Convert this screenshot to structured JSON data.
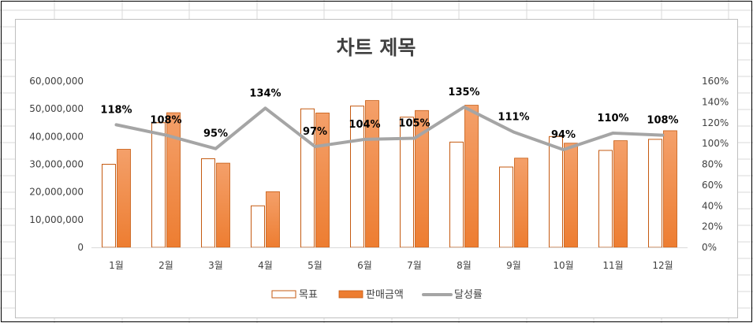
{
  "chart_data": {
    "type": "bar",
    "title": "차트 제목",
    "categories": [
      "1월",
      "2월",
      "3월",
      "4월",
      "5월",
      "6월",
      "7월",
      "8월",
      "9월",
      "10월",
      "11월",
      "12월"
    ],
    "series": [
      {
        "name": "목표",
        "kind": "bar",
        "style": "outline",
        "values": [
          30000000,
          45000000,
          32000000,
          15000000,
          50000000,
          51000000,
          47000000,
          38000000,
          29000000,
          40000000,
          35000000,
          39000000
        ]
      },
      {
        "name": "판매금액",
        "kind": "bar",
        "style": "filled",
        "values": [
          35400000,
          48600000,
          30400000,
          20100000,
          48500000,
          53000000,
          49400000,
          51300000,
          32200000,
          37600000,
          38500000,
          42100000
        ]
      },
      {
        "name": "달성률",
        "kind": "line",
        "axis": "secondary",
        "values": [
          1.18,
          1.08,
          0.95,
          1.34,
          0.97,
          1.04,
          1.05,
          1.35,
          1.11,
          0.94,
          1.1,
          1.08
        ],
        "labels": [
          "118%",
          "108%",
          "95%",
          "134%",
          "97%",
          "104%",
          "105%",
          "135%",
          "111%",
          "94%",
          "110%",
          "108%"
        ]
      }
    ],
    "yaxis": {
      "ylim": [
        0,
        60000000
      ],
      "ticks": [
        "0",
        "10,000,000",
        "20,000,000",
        "30,000,000",
        "40,000,000",
        "50,000,000",
        "60,000,000"
      ]
    },
    "y2axis": {
      "ylim": [
        0,
        1.6
      ],
      "ticks": [
        "0%",
        "20%",
        "40%",
        "60%",
        "80%",
        "100%",
        "120%",
        "140%",
        "160%"
      ]
    },
    "grid": false,
    "legend": "bottom",
    "colors": {
      "bar_outline": "#c55a11",
      "bar_fill": "#ed7d31",
      "line": "#a5a5a5"
    }
  }
}
